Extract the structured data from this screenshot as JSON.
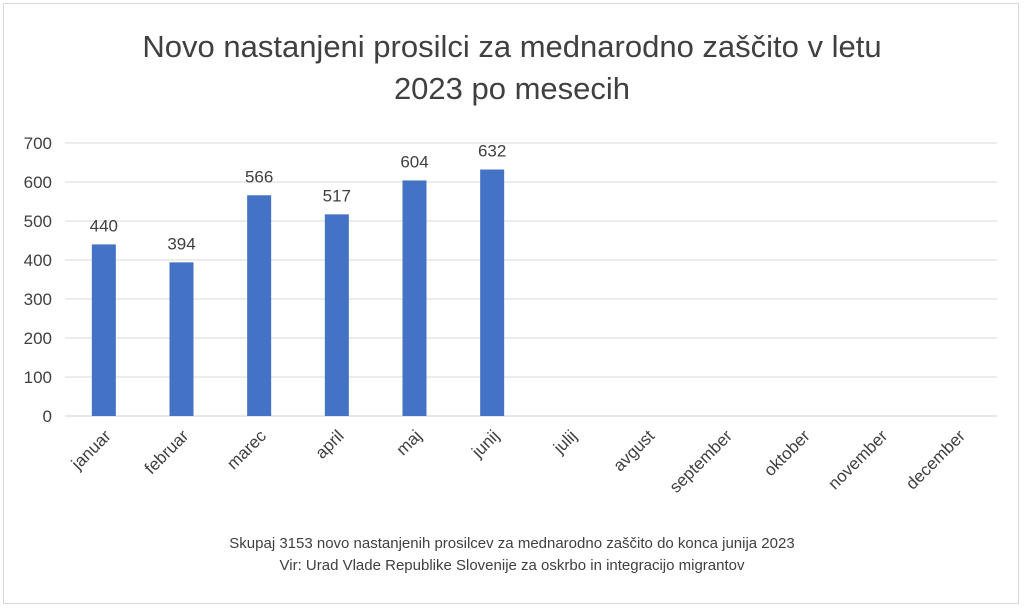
{
  "chart_data": {
    "type": "bar",
    "title_lines": [
      "Novo nastanjeni prosilci za mednarodno zaščito v letu",
      "2023 po mesecih"
    ],
    "categories": [
      "januar",
      "februar",
      "marec",
      "april",
      "maj",
      "junij",
      "julij",
      "avgust",
      "september",
      "oktober",
      "november",
      "december"
    ],
    "values": [
      440,
      394,
      566,
      517,
      604,
      632,
      null,
      null,
      null,
      null,
      null,
      null
    ],
    "ylim": [
      0,
      700
    ],
    "yticks": [
      "0",
      "100",
      "200",
      "300",
      "400",
      "500",
      "600",
      "700"
    ],
    "grid": true,
    "bar_color": "#4472c4",
    "data_labels": true
  },
  "footer": {
    "line1": "Skupaj 3153 novo nastanjenih prosilcev za mednarodno zaščito do konca junija 2023",
    "line2": "Vir: Urad Vlade Republike Slovenije za oskrbo in integracijo migrantov"
  }
}
